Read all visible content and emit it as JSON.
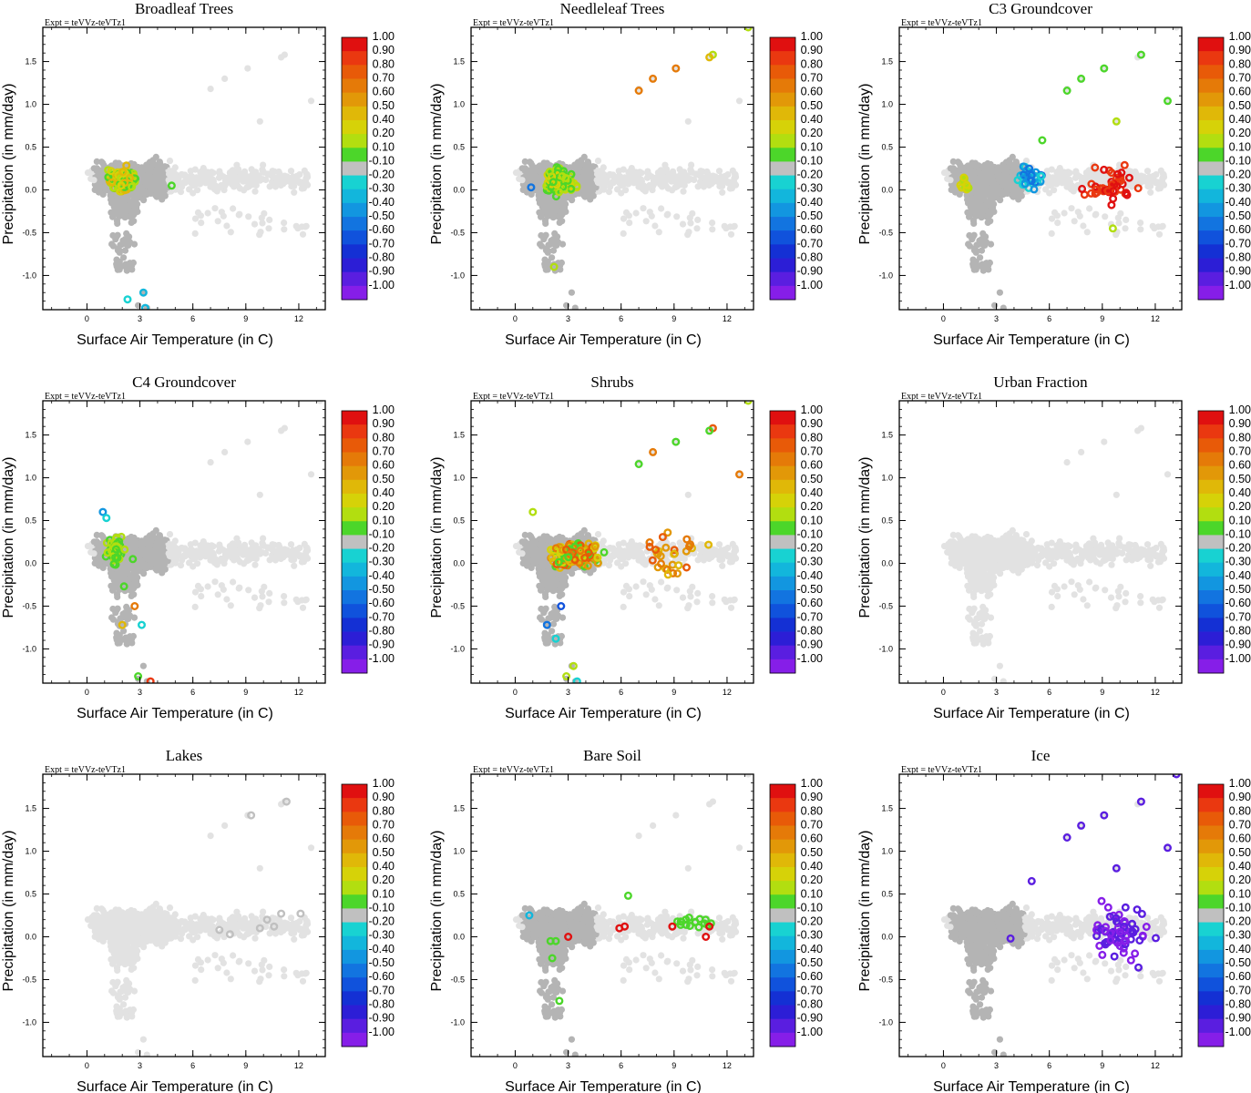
{
  "experiment_label": "Expt = teVVz-teVTz1",
  "xlabel": "Surface Air Temperature (in C)",
  "ylabel": "Precipitation (in mm/day)",
  "x_ticks": [
    "0",
    "3",
    "6",
    "9",
    "12"
  ],
  "x_tick_values": [
    0,
    3,
    6,
    9,
    12
  ],
  "y_ticks": [
    "-1.0",
    "-0.5",
    "0.0",
    "0.5",
    "1.0",
    "1.5"
  ],
  "y_tick_values": [
    -1.0,
    -0.5,
    0.0,
    0.5,
    1.0,
    1.5
  ],
  "colorbar": {
    "labels": [
      "1.00",
      "0.90",
      "0.80",
      "0.70",
      "0.60",
      "0.50",
      "0.40",
      "0.20",
      "0.10",
      "-0.10",
      "-0.20",
      "-0.30",
      "-0.40",
      "-0.50",
      "-0.60",
      "-0.70",
      "-0.80",
      "-0.90",
      "-1.00"
    ],
    "colors": [
      "#e01010",
      "#ea3810",
      "#e85a08",
      "#e57a08",
      "#e29808",
      "#e0b808",
      "#d6d208",
      "#b2de10",
      "#4cd62a",
      "#c0c0c0",
      "#18d2d2",
      "#12b6dc",
      "#1296e0",
      "#1274e0",
      "#1052dc",
      "#1430d4",
      "#2c1ed6",
      "#5a1ee0",
      "#861ee8"
    ]
  },
  "chart_data": [
    {
      "type": "scatter",
      "title": "Broadleaf Trees",
      "xlim": [
        -2.5,
        13.5
      ],
      "ylim": [
        -1.4,
        1.9
      ],
      "highlight": "mixed"
    },
    {
      "type": "scatter",
      "title": "Needleleaf Trees",
      "xlim": [
        -2.5,
        13.5
      ],
      "ylim": [
        -1.4,
        1.9
      ],
      "highlight": "mixed"
    },
    {
      "type": "scatter",
      "title": "C3 Groundcover",
      "xlim": [
        -2.5,
        13.5
      ],
      "ylim": [
        -1.4,
        1.9
      ],
      "highlight": "mixed"
    },
    {
      "type": "scatter",
      "title": "C4 Groundcover",
      "xlim": [
        -2.5,
        13.5
      ],
      "ylim": [
        -1.4,
        1.9
      ],
      "highlight": "mixed"
    },
    {
      "type": "scatter",
      "title": "Shrubs",
      "xlim": [
        -2.5,
        13.5
      ],
      "ylim": [
        -1.4,
        1.9
      ],
      "highlight": "mixed"
    },
    {
      "type": "scatter",
      "title": "Urban Fraction",
      "xlim": [
        -2.5,
        13.5
      ],
      "ylim": [
        -1.4,
        1.9
      ],
      "highlight": "none"
    },
    {
      "type": "scatter",
      "title": "Lakes",
      "xlim": [
        -2.5,
        13.5
      ],
      "ylim": [
        -1.4,
        1.9
      ],
      "highlight": "mixed"
    },
    {
      "type": "scatter",
      "title": "Bare Soil",
      "xlim": [
        -2.5,
        13.5
      ],
      "ylim": [
        -1.4,
        1.9
      ],
      "highlight": "mixed"
    },
    {
      "type": "scatter",
      "title": "Ice",
      "xlim": [
        -2.5,
        13.5
      ],
      "ylim": [
        -1.4,
        1.9
      ],
      "highlight": "mixed"
    }
  ]
}
